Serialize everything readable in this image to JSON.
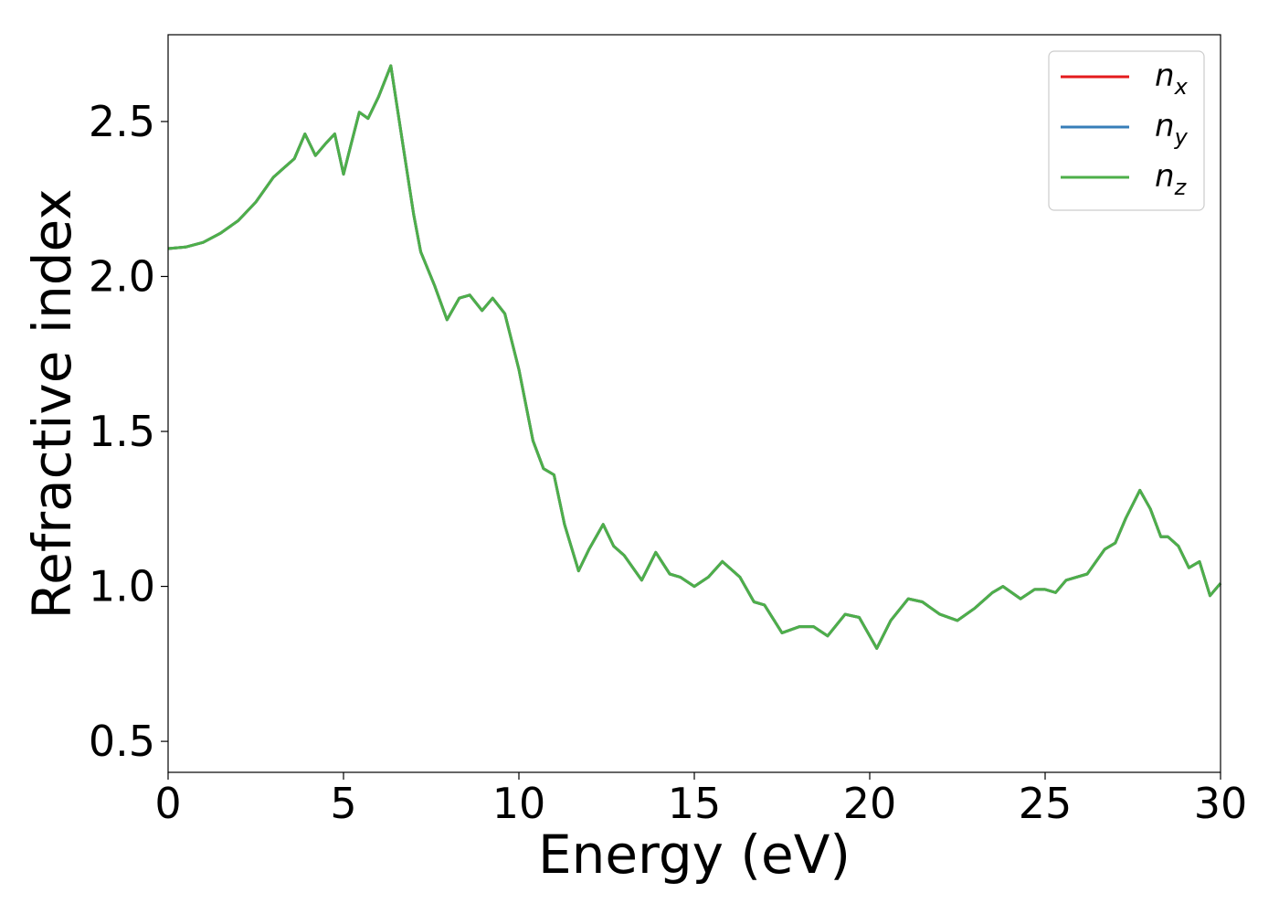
{
  "chart_data": {
    "type": "line",
    "title": "",
    "xlabel": "Energy (eV)",
    "ylabel": "Refractive index",
    "xlim": [
      0,
      30
    ],
    "ylim": [
      0.4,
      2.78
    ],
    "xticks": [
      0,
      5,
      10,
      15,
      20,
      25,
      30
    ],
    "yticks": [
      0.5,
      1.0,
      1.5,
      2.0,
      2.5
    ],
    "xtick_labels": [
      "0",
      "5",
      "10",
      "15",
      "20",
      "25",
      "30"
    ],
    "ytick_labels": [
      "0.5",
      "1.0",
      "1.5",
      "2.0",
      "2.5"
    ],
    "grid": false,
    "legend_position": "top-right",
    "x": [
      0,
      0.5,
      1.0,
      1.5,
      2.0,
      2.5,
      3.0,
      3.3,
      3.6,
      3.9,
      4.2,
      4.5,
      4.75,
      5.0,
      5.2,
      5.45,
      5.7,
      6.0,
      6.35,
      6.7,
      7.0,
      7.2,
      7.6,
      7.95,
      8.3,
      8.6,
      8.95,
      9.25,
      9.6,
      10.0,
      10.4,
      10.7,
      11.0,
      11.3,
      11.7,
      12.0,
      12.4,
      12.7,
      13.0,
      13.5,
      13.9,
      14.3,
      14.6,
      15.0,
      15.4,
      15.8,
      16.3,
      16.7,
      17.0,
      17.5,
      18.0,
      18.4,
      18.8,
      19.3,
      19.7,
      20.2,
      20.6,
      21.1,
      21.5,
      22.0,
      22.5,
      23.0,
      23.5,
      23.8,
      24.3,
      24.7,
      25.0,
      25.3,
      25.6,
      26.2,
      26.7,
      27.0,
      27.3,
      27.7,
      28.0,
      28.3,
      28.5,
      28.8,
      29.1,
      29.4,
      29.7,
      30.0
    ],
    "series": [
      {
        "name": "x",
        "color": "#e41a1c"
      },
      {
        "name": "y",
        "color": "#377eb8"
      },
      {
        "name": "z",
        "color": "#4daf4a",
        "values": [
          2.09,
          2.095,
          2.11,
          2.14,
          2.18,
          2.24,
          2.32,
          2.35,
          2.38,
          2.46,
          2.39,
          2.43,
          2.46,
          2.33,
          2.42,
          2.53,
          2.51,
          2.58,
          2.68,
          2.42,
          2.2,
          2.08,
          1.97,
          1.86,
          1.93,
          1.94,
          1.89,
          1.93,
          1.88,
          1.7,
          1.47,
          1.38,
          1.36,
          1.2,
          1.05,
          1.12,
          1.2,
          1.13,
          1.1,
          1.02,
          1.11,
          1.04,
          1.03,
          1.0,
          1.03,
          1.08,
          1.03,
          0.95,
          0.94,
          0.85,
          0.87,
          0.87,
          0.84,
          0.91,
          0.9,
          0.8,
          0.89,
          0.96,
          0.95,
          0.91,
          0.89,
          0.93,
          0.98,
          1.0,
          0.96,
          0.99,
          0.99,
          0.98,
          1.02,
          1.04,
          1.12,
          1.14,
          1.22,
          1.31,
          1.25,
          1.16,
          1.16,
          1.13,
          1.06,
          1.08,
          0.97,
          1.01
        ]
      }
    ]
  },
  "legend": {
    "entries": [
      {
        "symbol": "n",
        "subscript": "x",
        "color": "#e41a1c"
      },
      {
        "symbol": "n",
        "subscript": "y",
        "color": "#377eb8"
      },
      {
        "symbol": "n",
        "subscript": "z",
        "color": "#4daf4a"
      }
    ]
  }
}
